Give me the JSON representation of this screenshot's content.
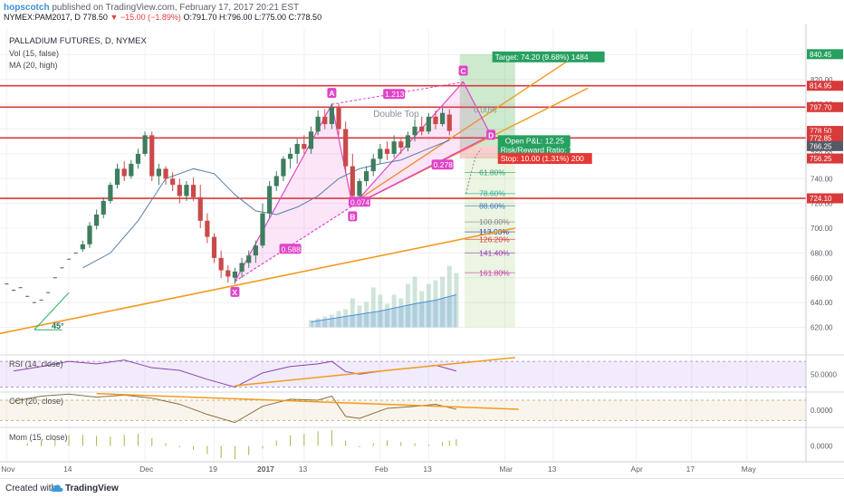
{
  "header": {
    "author": "hopscotch",
    "published_text": "published on TradingView.com, February 17, 2017 20:21 EST",
    "symbol": "NYMEX:PAM2017, D",
    "last": "778.50",
    "change": "−15.00 (−1.89%)",
    "ohlc": "O:791.70 H:796.00 L:775.00 C:778.50"
  },
  "legend": {
    "title": "PALLADIUM FUTURES, D, NYMEX",
    "vol": "Vol (15, false)",
    "ma": "MA (20, high)",
    "rsi": "RSI (14, close)",
    "cci": "CCI (20, close)",
    "mom": "Mom (15, close)"
  },
  "footer": {
    "created": "Created with",
    "brand": "TradingView"
  },
  "colors": {
    "up": "#3e7d5e",
    "down": "#c94a4a",
    "hline": "#d83a3a",
    "trend": "#f29b1f",
    "pattern": "#e045c7",
    "fib": "#27ae93"
  },
  "chart_data": {
    "type": "candlestick",
    "price_axis": {
      "min": 610,
      "max": 845,
      "ticks": [
        620,
        640,
        660,
        680,
        700,
        720,
        740,
        760,
        780,
        800,
        820,
        840
      ]
    },
    "x_axis_labels": [
      {
        "bar": 1,
        "label": "Nov"
      },
      {
        "bar": 10,
        "label": "14"
      },
      {
        "bar": 21,
        "label": "Dec"
      },
      {
        "bar": 31,
        "label": "19"
      },
      {
        "bar": 38,
        "label": "2017"
      },
      {
        "bar": 44,
        "label": "13"
      },
      {
        "bar": 55,
        "label": "Feb"
      },
      {
        "bar": 62,
        "label": "13"
      },
      {
        "bar": 73,
        "label": "Mar"
      },
      {
        "bar": 80,
        "label": "13"
      },
      {
        "bar": 92,
        "label": "Apr"
      },
      {
        "bar": 100,
        "label": "17"
      },
      {
        "bar": 108,
        "label": "May"
      }
    ],
    "ohlc": [
      [
        12,
        683,
        690,
        681,
        687
      ],
      [
        13,
        687,
        705,
        684,
        702
      ],
      [
        14,
        702,
        715,
        699,
        711
      ],
      [
        15,
        711,
        725,
        708,
        722
      ],
      [
        16,
        722,
        737,
        720,
        735
      ],
      [
        17,
        735,
        752,
        732,
        748
      ],
      [
        18,
        748,
        754,
        738,
        742
      ],
      [
        19,
        742,
        755,
        740,
        752
      ],
      [
        20,
        752,
        764,
        748,
        760
      ],
      [
        21,
        760,
        778,
        758,
        775
      ],
      [
        22,
        775,
        778,
        738,
        742
      ],
      [
        23,
        742,
        752,
        735,
        748
      ],
      [
        24,
        748,
        750,
        735,
        740
      ],
      [
        25,
        740,
        745,
        730,
        735
      ],
      [
        26,
        735,
        740,
        720,
        726
      ],
      [
        27,
        726,
        738,
        722,
        735
      ],
      [
        28,
        735,
        741,
        722,
        725
      ],
      [
        29,
        725,
        735,
        700,
        706
      ],
      [
        30,
        706,
        712,
        688,
        693
      ],
      [
        31,
        693,
        696,
        672,
        676
      ],
      [
        32,
        676,
        682,
        660,
        666
      ],
      [
        33,
        666,
        670,
        656,
        661
      ],
      [
        34,
        660,
        668,
        655,
        665
      ],
      [
        35,
        665,
        676,
        660,
        672
      ],
      [
        36,
        672,
        682,
        668,
        678
      ],
      [
        37,
        678,
        690,
        672,
        686
      ],
      [
        38,
        686,
        720,
        684,
        712
      ],
      [
        39,
        712,
        738,
        708,
        734
      ],
      [
        40,
        734,
        746,
        730,
        742
      ],
      [
        41,
        742,
        758,
        738,
        756
      ],
      [
        42,
        756,
        765,
        748,
        760
      ],
      [
        43,
        760,
        772,
        752,
        768
      ],
      [
        44,
        768,
        775,
        760,
        764
      ],
      [
        45,
        764,
        782,
        760,
        778
      ],
      [
        46,
        778,
        795,
        775,
        790
      ],
      [
        47,
        790,
        796,
        780,
        784
      ],
      [
        48,
        784,
        800,
        780,
        798
      ],
      [
        49,
        798,
        800,
        775,
        780
      ],
      [
        50,
        780,
        786,
        745,
        750
      ],
      [
        51,
        750,
        760,
        718,
        726
      ],
      [
        52,
        726,
        740,
        720,
        738
      ],
      [
        53,
        738,
        750,
        734,
        746
      ],
      [
        54,
        746,
        760,
        742,
        756
      ],
      [
        55,
        756,
        768,
        752,
        764
      ],
      [
        56,
        764,
        770,
        755,
        760
      ],
      [
        57,
        760,
        775,
        757,
        770
      ],
      [
        58,
        770,
        772,
        760,
        765
      ],
      [
        59,
        765,
        778,
        762,
        775
      ],
      [
        60,
        775,
        788,
        770,
        782
      ],
      [
        61,
        782,
        790,
        775,
        778
      ],
      [
        62,
        778,
        793,
        776,
        790
      ],
      [
        63,
        790,
        795,
        780,
        784
      ],
      [
        64,
        784,
        797,
        782,
        793
      ],
      [
        65,
        791.7,
        796,
        775,
        778.5
      ]
    ],
    "series": [
      {
        "name": "MA (20, high)",
        "values": [
          [
            12,
            668
          ],
          [
            16,
            680
          ],
          [
            20,
            706
          ],
          [
            24,
            740
          ],
          [
            28,
            748
          ],
          [
            31,
            744
          ],
          [
            34,
            727
          ],
          [
            37,
            714
          ],
          [
            40,
            711
          ],
          [
            43,
            717
          ],
          [
            46,
            726
          ],
          [
            49,
            740
          ],
          [
            52,
            748
          ],
          [
            55,
            752
          ],
          [
            58,
            755
          ],
          [
            61,
            762
          ],
          [
            65,
            771
          ]
        ]
      }
    ],
    "horizontal_levels": [
      814.95,
      797.7,
      772.85,
      724.1
    ],
    "axis_badges": [
      {
        "price": 840.45,
        "label": "840.45",
        "color": "#27a060"
      },
      {
        "price": 814.95,
        "label": "814.95",
        "color": "#d83a3a"
      },
      {
        "price": 797.7,
        "label": "797.70",
        "color": "#d83a3a"
      },
      {
        "price": 778.5,
        "label": "778.50",
        "color": "#d83a3a"
      },
      {
        "price": 772.85,
        "label": "772.85",
        "color": "#d83a3a"
      },
      {
        "price": 766.25,
        "label": "766.25",
        "color": "#565a64"
      },
      {
        "price": 756.25,
        "label": "756.25",
        "color": "#d83a3a"
      },
      {
        "price": 724.1,
        "label": "724.10",
        "color": "#d83a3a"
      }
    ],
    "xabcd": {
      "points": [
        {
          "label": "X",
          "bar": 34,
          "price": 657
        },
        {
          "label": "A",
          "bar": 48,
          "price": 800
        },
        {
          "label": "B",
          "bar": 51,
          "price": 718
        },
        {
          "label": "C",
          "bar": 67,
          "price": 818
        },
        {
          "label": "D",
          "bar": 71,
          "price": 775
        }
      ],
      "ratios": [
        {
          "label": "0.588",
          "bar": 42,
          "price": 683
        },
        {
          "label": "0.074",
          "bar": 52,
          "price": 721
        },
        {
          "label": "1.213",
          "bar": 57,
          "price": 808
        },
        {
          "label": "0.278",
          "bar": 64,
          "price": 751
        }
      ]
    },
    "annotations": [
      {
        "text": "Double Top",
        "bar": 54,
        "price": 790
      },
      {
        "text": "0.00%",
        "bar": 68.5,
        "price": 793
      },
      {
        "text": "45°",
        "bar": 7.5,
        "price": 619
      }
    ],
    "fib_levels": [
      {
        "label": "61.80%",
        "price": 745,
        "color": "#2e9e6e"
      },
      {
        "label": "78.60%",
        "price": 728,
        "color": "#27ae93"
      },
      {
        "label": "88.60%",
        "price": 718,
        "color": "#3a78b5"
      },
      {
        "label": "100.00%",
        "price": 705,
        "color": "#888888"
      },
      {
        "label": "113.00%",
        "price": 697,
        "color": "#2a3aa0"
      },
      {
        "label": "126.20%",
        "price": 691,
        "color": "#d83a3a"
      },
      {
        "label": "141.40%",
        "price": 680,
        "color": "#9c3ab3"
      },
      {
        "label": "161.80%",
        "price": 664,
        "color": "#c93aa8"
      }
    ],
    "position": {
      "target": "Target: 74.20 (9.68%) 1484",
      "open_pl": "Open P&L: 12.25",
      "rr": "Risk/Reward Ratio: 7.42",
      "stop": "Stop: 10.00 (1.31%) 200",
      "entry": 766.25,
      "target_price": 840.45,
      "stop_price": 756.25
    },
    "volume": [
      [
        45,
        4
      ],
      [
        46,
        5
      ],
      [
        47,
        6
      ],
      [
        48,
        7
      ],
      [
        49,
        9
      ],
      [
        50,
        10
      ],
      [
        51,
        16
      ],
      [
        52,
        12
      ],
      [
        53,
        14
      ],
      [
        54,
        22
      ],
      [
        55,
        18
      ],
      [
        56,
        13
      ],
      [
        57,
        18
      ],
      [
        58,
        16
      ],
      [
        59,
        24
      ],
      [
        60,
        28
      ],
      [
        61,
        20
      ],
      [
        62,
        24
      ],
      [
        63,
        26
      ],
      [
        64,
        28
      ],
      [
        65,
        34
      ],
      [
        66,
        30
      ]
    ],
    "vol_ma": [
      [
        45,
        3
      ],
      [
        50,
        6
      ],
      [
        55,
        9
      ],
      [
        60,
        13
      ],
      [
        63,
        15
      ],
      [
        66,
        18
      ]
    ],
    "rsi": {
      "ticks": [
        {
          "v": 50,
          "label": "50.0000"
        }
      ],
      "values": [
        [
          2,
          55
        ],
        [
          6,
          62
        ],
        [
          10,
          70
        ],
        [
          14,
          66
        ],
        [
          18,
          72
        ],
        [
          22,
          60
        ],
        [
          26,
          56
        ],
        [
          30,
          42
        ],
        [
          34,
          30
        ],
        [
          38,
          52
        ],
        [
          42,
          62
        ],
        [
          46,
          66
        ],
        [
          48,
          70
        ],
        [
          50,
          54
        ],
        [
          52,
          50
        ],
        [
          56,
          56
        ],
        [
          60,
          60
        ],
        [
          63,
          64
        ],
        [
          66,
          55
        ]
      ]
    },
    "cci": {
      "ticks": [
        {
          "v": 0,
          "label": "0.0000"
        }
      ],
      "values": [
        [
          2,
          90
        ],
        [
          6,
          140
        ],
        [
          10,
          160
        ],
        [
          14,
          130
        ],
        [
          18,
          150
        ],
        [
          22,
          120
        ],
        [
          26,
          60
        ],
        [
          30,
          -40
        ],
        [
          34,
          -120
        ],
        [
          38,
          40
        ],
        [
          42,
          110
        ],
        [
          46,
          100
        ],
        [
          48,
          140
        ],
        [
          50,
          -60
        ],
        [
          52,
          -80
        ],
        [
          56,
          20
        ],
        [
          60,
          40
        ],
        [
          63,
          60
        ],
        [
          66,
          10
        ]
      ]
    },
    "mom": {
      "ticks": [
        {
          "v": 0,
          "label": "0.0000"
        }
      ],
      "values": [
        [
          4,
          10
        ],
        [
          6,
          20
        ],
        [
          8,
          30
        ],
        [
          10,
          40
        ],
        [
          12,
          42
        ],
        [
          14,
          38
        ],
        [
          16,
          35
        ],
        [
          18,
          42
        ],
        [
          20,
          45
        ],
        [
          22,
          30
        ],
        [
          24,
          10
        ],
        [
          26,
          -5
        ],
        [
          28,
          -15
        ],
        [
          30,
          -30
        ],
        [
          32,
          -45
        ],
        [
          34,
          -50
        ],
        [
          36,
          -35
        ],
        [
          38,
          -10
        ],
        [
          40,
          20
        ],
        [
          42,
          40
        ],
        [
          44,
          45
        ],
        [
          46,
          55
        ],
        [
          48,
          60
        ],
        [
          50,
          20
        ],
        [
          52,
          -5
        ],
        [
          54,
          10
        ],
        [
          56,
          20
        ],
        [
          58,
          15
        ],
        [
          60,
          10
        ],
        [
          62,
          5
        ],
        [
          64,
          15
        ],
        [
          65,
          20
        ],
        [
          66,
          25
        ]
      ]
    }
  }
}
